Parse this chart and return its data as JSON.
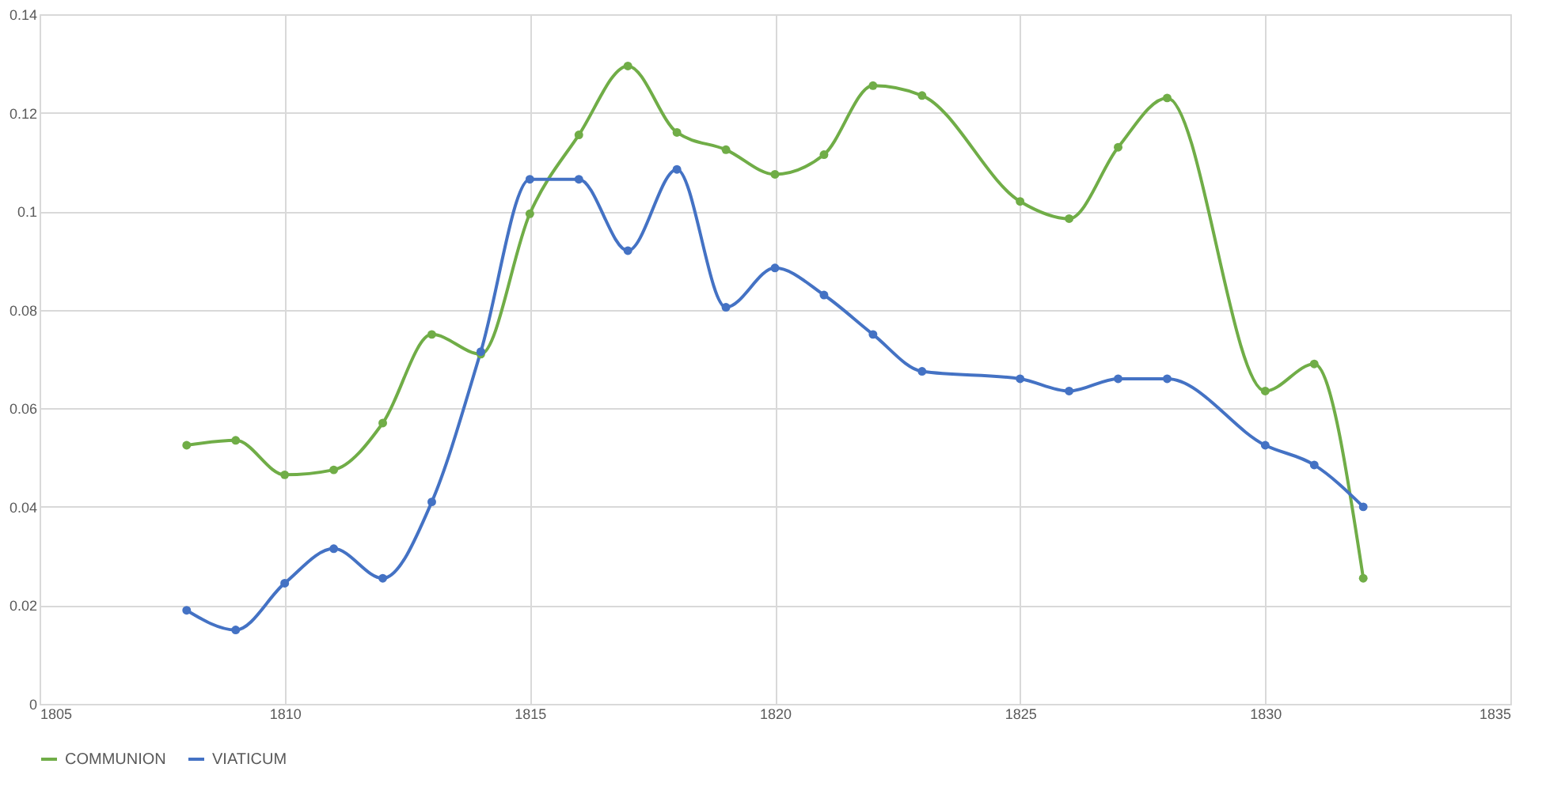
{
  "chart_data": {
    "type": "line",
    "x": [
      1808,
      1809,
      1810,
      1811,
      1812,
      1813,
      1814,
      1815,
      1816,
      1817,
      1818,
      1819,
      1820,
      1821,
      1822,
      1823,
      1825,
      1826,
      1827,
      1828,
      1830,
      1831,
      1832
    ],
    "series": [
      {
        "name": "COMMUNION",
        "color": "#70ad47",
        "values": [
          0.0525,
          0.0535,
          0.0465,
          0.0475,
          0.057,
          0.075,
          0.071,
          0.0995,
          0.1155,
          0.1295,
          0.116,
          0.1125,
          0.1075,
          0.1115,
          0.1255,
          0.1235,
          0.102,
          0.0985,
          0.113,
          0.123,
          0.0635,
          0.069,
          0.0255
        ]
      },
      {
        "name": "VIATICUM",
        "color": "#4472c4",
        "values": [
          0.019,
          0.015,
          0.0245,
          0.0315,
          0.0255,
          0.041,
          0.0715,
          0.1065,
          0.1065,
          0.092,
          0.1085,
          0.0805,
          0.0885,
          0.083,
          0.075,
          0.0675,
          0.066,
          0.0635,
          0.066,
          0.066,
          0.0525,
          0.0485,
          0.04
        ]
      }
    ],
    "xlim": [
      1805,
      1835
    ],
    "xticks": [
      1805,
      1810,
      1815,
      1820,
      1825,
      1830,
      1835
    ],
    "ylim": [
      0,
      0.14
    ],
    "yticks": [
      0,
      0.02,
      0.04,
      0.06,
      0.08,
      0.1,
      0.12,
      0.14
    ],
    "grid": true,
    "legend": "bottom",
    "marker": "circle",
    "line_style": "solid"
  }
}
